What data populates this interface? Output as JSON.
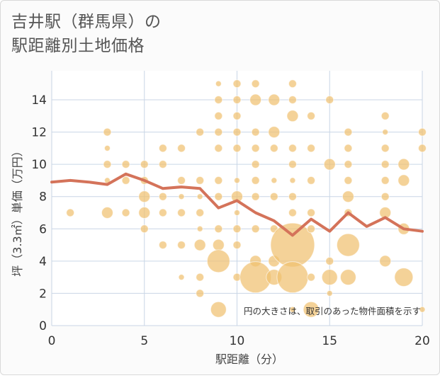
{
  "title_line1": "吉井駅（群馬県）の",
  "title_line2": "駅距離別土地価格",
  "chart_data": {
    "type": "scatter+line",
    "xlabel": "駅距離（分）",
    "ylabel": "坪（3.3㎡）単価（万円）",
    "xlim": [
      0,
      20
    ],
    "ylim": [
      0,
      15.8
    ],
    "xticks": [
      0,
      5,
      10,
      15,
      20
    ],
    "yticks": [
      0,
      2,
      4,
      6,
      8,
      10,
      12,
      14
    ],
    "annotation": "円の大きさは、取引のあった物件面積を示す",
    "colors": {
      "bubble": "#f0c070",
      "line": "#d4735a"
    },
    "line": [
      {
        "x": 0,
        "y": 8.9
      },
      {
        "x": 1,
        "y": 9.0
      },
      {
        "x": 2,
        "y": 8.9
      },
      {
        "x": 3,
        "y": 8.75
      },
      {
        "x": 4,
        "y": 9.4
      },
      {
        "x": 5,
        "y": 9.0
      },
      {
        "x": 6,
        "y": 8.5
      },
      {
        "x": 7,
        "y": 8.6
      },
      {
        "x": 8,
        "y": 8.5
      },
      {
        "x": 9,
        "y": 7.3
      },
      {
        "x": 10,
        "y": 7.75
      },
      {
        "x": 11,
        "y": 7.0
      },
      {
        "x": 12,
        "y": 6.5
      },
      {
        "x": 13,
        "y": 5.6
      },
      {
        "x": 14,
        "y": 6.6
      },
      {
        "x": 15,
        "y": 5.85
      },
      {
        "x": 16,
        "y": 7.0
      },
      {
        "x": 17,
        "y": 6.15
      },
      {
        "x": 18,
        "y": 6.7
      },
      {
        "x": 19,
        "y": 6.0
      },
      {
        "x": 20,
        "y": 5.85
      }
    ],
    "bubbles": [
      {
        "x": 1,
        "y": 7,
        "s": 1
      },
      {
        "x": 3,
        "y": 12,
        "s": 1
      },
      {
        "x": 3,
        "y": 11,
        "s": 0
      },
      {
        "x": 3,
        "y": 10,
        "s": 1
      },
      {
        "x": 3,
        "y": 9,
        "s": 0
      },
      {
        "x": 3,
        "y": 7,
        "s": 2
      },
      {
        "x": 4,
        "y": 10,
        "s": 1
      },
      {
        "x": 4,
        "y": 9,
        "s": 1
      },
      {
        "x": 4,
        "y": 7,
        "s": 1
      },
      {
        "x": 5,
        "y": 10,
        "s": 1
      },
      {
        "x": 5,
        "y": 9,
        "s": 1
      },
      {
        "x": 5,
        "y": 8,
        "s": 2
      },
      {
        "x": 5,
        "y": 7,
        "s": 2
      },
      {
        "x": 5,
        "y": 6,
        "s": 1
      },
      {
        "x": 6,
        "y": 11,
        "s": 1
      },
      {
        "x": 6,
        "y": 10,
        "s": 1
      },
      {
        "x": 6,
        "y": 8,
        "s": 1
      },
      {
        "x": 6,
        "y": 7,
        "s": 1
      },
      {
        "x": 6,
        "y": 5,
        "s": 1
      },
      {
        "x": 7,
        "y": 11,
        "s": 1
      },
      {
        "x": 7,
        "y": 9,
        "s": 1
      },
      {
        "x": 7,
        "y": 8,
        "s": 0
      },
      {
        "x": 7,
        "y": 7,
        "s": 1
      },
      {
        "x": 7,
        "y": 5,
        "s": 1
      },
      {
        "x": 7,
        "y": 3,
        "s": 0
      },
      {
        "x": 8,
        "y": 12,
        "s": 1
      },
      {
        "x": 8,
        "y": 9,
        "s": 1
      },
      {
        "x": 8,
        "y": 8,
        "s": 0
      },
      {
        "x": 8,
        "y": 7,
        "s": 1
      },
      {
        "x": 8,
        "y": 6,
        "s": 0
      },
      {
        "x": 8,
        "y": 5,
        "s": 2
      },
      {
        "x": 8,
        "y": 3,
        "s": 1
      },
      {
        "x": 8,
        "y": 2,
        "s": 1
      },
      {
        "x": 9,
        "y": 15,
        "s": 0
      },
      {
        "x": 9,
        "y": 14,
        "s": 1
      },
      {
        "x": 9,
        "y": 13,
        "s": 1
      },
      {
        "x": 9,
        "y": 12,
        "s": 1
      },
      {
        "x": 9,
        "y": 11,
        "s": 1
      },
      {
        "x": 9,
        "y": 9,
        "s": 1
      },
      {
        "x": 9,
        "y": 8,
        "s": 1
      },
      {
        "x": 9,
        "y": 6,
        "s": 1
      },
      {
        "x": 9,
        "y": 5,
        "s": 2
      },
      {
        "x": 9,
        "y": 4,
        "s": 5
      },
      {
        "x": 9,
        "y": 1,
        "s": 3
      },
      {
        "x": 10,
        "y": 15,
        "s": 1
      },
      {
        "x": 10,
        "y": 14,
        "s": 1
      },
      {
        "x": 10,
        "y": 13,
        "s": 1
      },
      {
        "x": 10,
        "y": 12,
        "s": 1
      },
      {
        "x": 10,
        "y": 11,
        "s": 1
      },
      {
        "x": 10,
        "y": 9,
        "s": 0
      },
      {
        "x": 10,
        "y": 8,
        "s": 2
      },
      {
        "x": 10,
        "y": 7,
        "s": 0
      },
      {
        "x": 10,
        "y": 6,
        "s": 1
      },
      {
        "x": 10,
        "y": 5,
        "s": 1
      },
      {
        "x": 10,
        "y": 3,
        "s": 1
      },
      {
        "x": 11,
        "y": 15,
        "s": 1
      },
      {
        "x": 11,
        "y": 14,
        "s": 2
      },
      {
        "x": 11,
        "y": 12,
        "s": 1
      },
      {
        "x": 11,
        "y": 11,
        "s": 1
      },
      {
        "x": 11,
        "y": 10,
        "s": 1
      },
      {
        "x": 11,
        "y": 9,
        "s": 1
      },
      {
        "x": 11,
        "y": 8,
        "s": 1
      },
      {
        "x": 11,
        "y": 6,
        "s": 1
      },
      {
        "x": 11,
        "y": 4,
        "s": 2
      },
      {
        "x": 11,
        "y": 3,
        "s": 7
      },
      {
        "x": 12,
        "y": 14,
        "s": 2
      },
      {
        "x": 12,
        "y": 12,
        "s": 2
      },
      {
        "x": 12,
        "y": 11,
        "s": 1
      },
      {
        "x": 12,
        "y": 9,
        "s": 0
      },
      {
        "x": 12,
        "y": 8,
        "s": 1
      },
      {
        "x": 12,
        "y": 6,
        "s": 1
      },
      {
        "x": 12,
        "y": 4,
        "s": 2
      },
      {
        "x": 12,
        "y": 3,
        "s": 3
      },
      {
        "x": 13,
        "y": 15,
        "s": 1
      },
      {
        "x": 13,
        "y": 14,
        "s": 1
      },
      {
        "x": 13,
        "y": 13,
        "s": 2
      },
      {
        "x": 13,
        "y": 11,
        "s": 1
      },
      {
        "x": 13,
        "y": 10,
        "s": 1
      },
      {
        "x": 13,
        "y": 9,
        "s": 0
      },
      {
        "x": 13,
        "y": 8,
        "s": 1
      },
      {
        "x": 13,
        "y": 7,
        "s": 1
      },
      {
        "x": 13,
        "y": 5,
        "s": 8
      },
      {
        "x": 13,
        "y": 3,
        "s": 7
      },
      {
        "x": 13,
        "y": 1,
        "s": 0
      },
      {
        "x": 14,
        "y": 13,
        "s": 1
      },
      {
        "x": 14,
        "y": 11,
        "s": 1
      },
      {
        "x": 14,
        "y": 9,
        "s": 1
      },
      {
        "x": 14,
        "y": 7,
        "s": 1
      },
      {
        "x": 14,
        "y": 6,
        "s": 1
      },
      {
        "x": 14,
        "y": 3,
        "s": 1
      },
      {
        "x": 14,
        "y": 1,
        "s": 3
      },
      {
        "x": 15,
        "y": 14,
        "s": 1
      },
      {
        "x": 15,
        "y": 10,
        "s": 2
      },
      {
        "x": 15,
        "y": 4,
        "s": 1
      },
      {
        "x": 15,
        "y": 3,
        "s": 3
      },
      {
        "x": 15,
        "y": 2,
        "s": 0
      },
      {
        "x": 16,
        "y": 12,
        "s": 1
      },
      {
        "x": 16,
        "y": 11,
        "s": 1
      },
      {
        "x": 16,
        "y": 10,
        "s": 1
      },
      {
        "x": 16,
        "y": 9,
        "s": 1
      },
      {
        "x": 16,
        "y": 8,
        "s": 2
      },
      {
        "x": 16,
        "y": 7,
        "s": 1
      },
      {
        "x": 16,
        "y": 5,
        "s": 5
      },
      {
        "x": 16,
        "y": 3,
        "s": 3
      },
      {
        "x": 18,
        "y": 13,
        "s": 1
      },
      {
        "x": 18,
        "y": 12,
        "s": 0
      },
      {
        "x": 18,
        "y": 11,
        "s": 1
      },
      {
        "x": 18,
        "y": 10,
        "s": 1
      },
      {
        "x": 18,
        "y": 9,
        "s": 1
      },
      {
        "x": 18,
        "y": 8,
        "s": 1
      },
      {
        "x": 18,
        "y": 7,
        "s": 2
      },
      {
        "x": 18,
        "y": 4,
        "s": 2
      },
      {
        "x": 19,
        "y": 10,
        "s": 2
      },
      {
        "x": 19,
        "y": 9,
        "s": 2
      },
      {
        "x": 19,
        "y": 6,
        "s": 2
      },
      {
        "x": 19,
        "y": 3,
        "s": 4
      },
      {
        "x": 20,
        "y": 12,
        "s": 1
      },
      {
        "x": 20,
        "y": 11,
        "s": 1
      },
      {
        "x": 20,
        "y": 1,
        "s": 0
      }
    ]
  }
}
